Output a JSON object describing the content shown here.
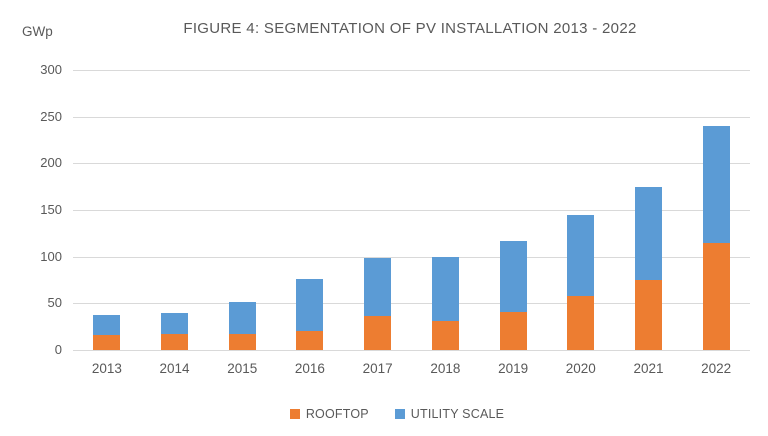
{
  "header": {
    "units_label": "GWp",
    "title": "FIGURE 4: SEGMENTATION OF PV INSTALLATION 2013 - 2022"
  },
  "colors": {
    "rooftop": "#ED7D31",
    "utility_scale": "#5B9BD5",
    "gridline": "#D9D9D9",
    "text": "#595959",
    "background": "#FFFFFF"
  },
  "chart_data": {
    "type": "bar",
    "stacked": true,
    "title": "FIGURE 4: SEGMENTATION OF PV INSTALLATION 2013 - 2022",
    "ylabel": "GWp",
    "xlabel": "",
    "categories": [
      "2013",
      "2014",
      "2015",
      "2016",
      "2017",
      "2018",
      "2019",
      "2020",
      "2021",
      "2022"
    ],
    "series": [
      {
        "name": "ROOFTOP",
        "color": "#ED7D31",
        "values": [
          16,
          17,
          17,
          20,
          37,
          31,
          41,
          58,
          75,
          115
        ]
      },
      {
        "name": "UTILITY SCALE",
        "color": "#5B9BD5",
        "values": [
          22,
          23,
          34,
          56,
          62,
          69,
          76,
          87,
          100,
          125
        ]
      }
    ],
    "totals": [
      38,
      40,
      51,
      76,
      99,
      100,
      117,
      145,
      175,
      240
    ],
    "ylim": [
      0,
      300
    ],
    "yticks": [
      0,
      50,
      100,
      150,
      200,
      250,
      300
    ],
    "grid": true,
    "legend_position": "bottom"
  },
  "legend": {
    "items": [
      {
        "label": "ROOFTOP",
        "color": "#ED7D31"
      },
      {
        "label": "UTILITY SCALE",
        "color": "#5B9BD5"
      }
    ]
  }
}
